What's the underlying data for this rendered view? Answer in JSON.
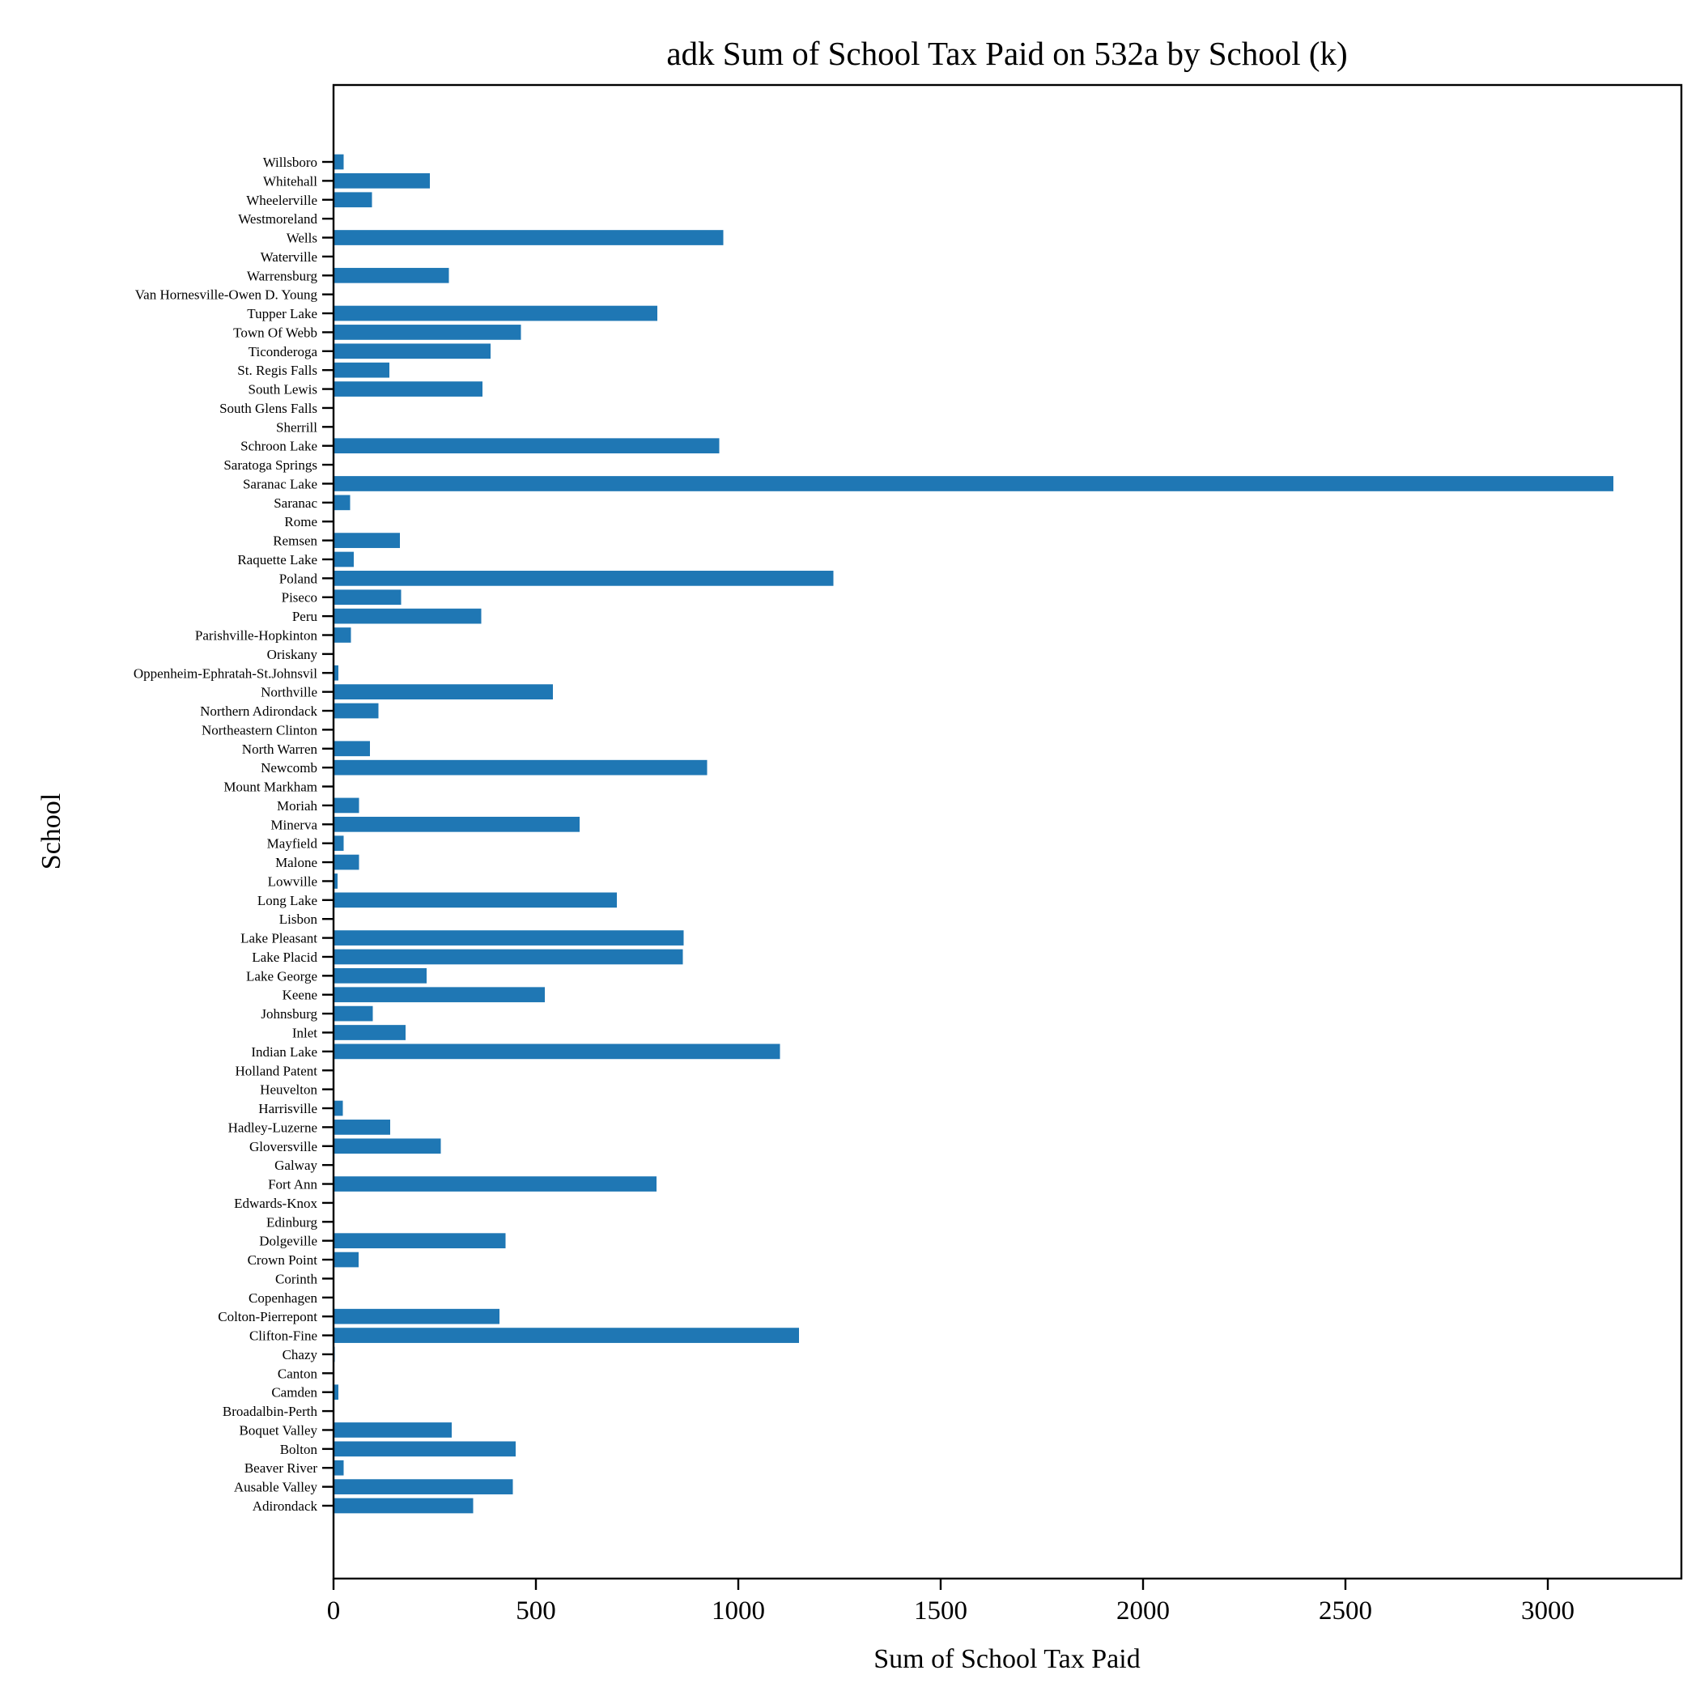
{
  "chart_data": {
    "type": "bar",
    "orientation": "horizontal",
    "title": "adk Sum of School Tax Paid on 532a by School (k)",
    "xlabel": "Sum of School Tax Paid",
    "ylabel": "School",
    "xlim": [
      0,
      3330
    ],
    "xticks": [
      0,
      500,
      1000,
      1500,
      2000,
      2500,
      3000
    ],
    "grid": false,
    "legend": "none",
    "bar_color": "#1f77b4",
    "categories": [
      "Adirondack",
      "Ausable Valley",
      "Beaver River",
      "Bolton",
      "Boquet Valley",
      "Broadalbin-Perth",
      "Camden",
      "Canton",
      "Chazy",
      "Clifton-Fine",
      "Colton-Pierrepont",
      "Copenhagen",
      "Corinth",
      "Crown Point",
      "Dolgeville",
      "Edinburg",
      "Edwards-Knox",
      "Fort Ann",
      "Galway",
      "Gloversville",
      "Hadley-Luzerne",
      "Harrisville",
      "Heuvelton",
      "Holland Patent",
      "Indian Lake",
      "Inlet",
      "Johnsburg",
      "Keene",
      "Lake George",
      "Lake Placid",
      "Lake Pleasant",
      "Lisbon",
      "Long Lake",
      "Lowville",
      "Malone",
      "Mayfield",
      "Minerva",
      "Moriah",
      "Mount Markham",
      "Newcomb",
      "North Warren",
      "Northeastern Clinton",
      "Northern Adirondack",
      "Northville",
      "Oppenheim-Ephratah-St.Johnsvil",
      "Oriskany",
      "Parishville-Hopkinton",
      "Peru",
      "Piseco",
      "Poland",
      "Raquette Lake",
      "Remsen",
      "Rome",
      "Saranac",
      "Saranac Lake",
      "Saratoga Springs",
      "Schroon Lake",
      "Sherrill",
      "South Glens Falls",
      "South Lewis",
      "St. Regis Falls",
      "Ticonderoga",
      "Town Of Webb",
      "Tupper Lake",
      "Van Hornesville-Owen D. Young",
      "Warrensburg",
      "Waterville",
      "Wells",
      "Westmoreland",
      "Wheelerville",
      "Whitehall",
      "Willsboro"
    ],
    "values": [
      345,
      443,
      25,
      450,
      292,
      2,
      12,
      2,
      3,
      1150,
      410,
      1,
      2,
      62,
      425,
      1,
      1,
      798,
      1,
      265,
      140,
      23,
      1,
      2,
      1103,
      178,
      97,
      522,
      230,
      863,
      865,
      1,
      700,
      10,
      63,
      25,
      608,
      63,
      1,
      923,
      90,
      1,
      111,
      542,
      12,
      1,
      43,
      365,
      167,
      1235,
      50,
      164,
      1,
      41,
      3162,
      1,
      953,
      1,
      1,
      368,
      138,
      388,
      463,
      800,
      1,
      285,
      1,
      963,
      1,
      95,
      238,
      25
    ]
  }
}
